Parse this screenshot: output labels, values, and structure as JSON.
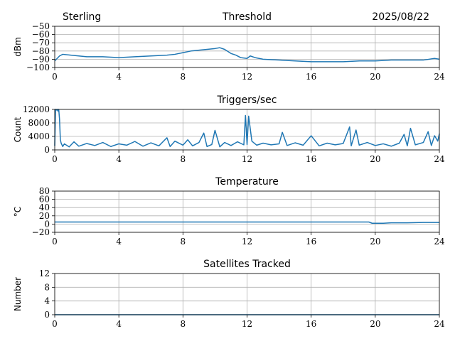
{
  "header": {
    "station": "Sterling",
    "date": "2025/08/22"
  },
  "colors": {
    "series": "#1f77b4",
    "grid": "#b0b0b0"
  },
  "chart_data": [
    {
      "type": "line",
      "title": "Threshold",
      "ylabel": "dBm",
      "xlim": [
        0,
        24
      ],
      "ylim": [
        -100,
        -50
      ],
      "xticks": [
        0,
        4,
        8,
        12,
        16,
        20,
        24
      ],
      "yticks": [
        -100,
        -90,
        -80,
        -70,
        -60,
        -50
      ],
      "ytick_labels": [
        "−100",
        "−90",
        "−80",
        "−70",
        "−60",
        "−50"
      ],
      "grid": true,
      "series": [
        {
          "x": [
            0,
            0.3,
            0.5,
            1,
            2,
            3,
            4,
            5,
            6,
            7,
            7.5,
            8,
            8.5,
            9,
            9.5,
            10,
            10.3,
            10.6,
            11,
            11.3,
            11.6,
            12,
            12.2,
            12.5,
            13,
            14,
            15,
            16,
            17,
            18,
            19,
            20,
            21,
            22,
            23,
            23.7,
            24
          ],
          "y": [
            -92,
            -86,
            -84,
            -85,
            -87,
            -87,
            -88,
            -87,
            -86,
            -85,
            -84,
            -82,
            -80,
            -79,
            -78,
            -77,
            -76,
            -78,
            -83,
            -85,
            -88,
            -89,
            -86,
            -88,
            -90,
            -91,
            -92,
            -93,
            -93,
            -93,
            -92,
            -92,
            -91,
            -91,
            -91,
            -89,
            -90
          ]
        }
      ]
    },
    {
      "type": "line",
      "title": "Triggers/sec",
      "ylabel": "Count",
      "xlim": [
        0,
        24
      ],
      "ylim": [
        0,
        12000
      ],
      "xticks": [
        0,
        4,
        8,
        12,
        16,
        20,
        24
      ],
      "yticks": [
        0,
        4000,
        8000,
        12000
      ],
      "ytick_labels": [
        "0",
        "4000",
        "8000",
        "12000"
      ],
      "grid": true,
      "base_level": 1500,
      "series": [
        {
          "x": [
            0,
            0.05,
            0.1,
            0.15,
            0.2,
            0.25,
            0.3,
            0.35,
            0.4,
            0.5,
            0.6,
            0.9,
            1.2,
            1.5,
            2,
            2.5,
            3,
            3.5,
            4,
            4.5,
            5,
            5.5,
            6,
            6.5,
            7,
            7.2,
            7.5,
            8,
            8.3,
            8.6,
            9,
            9.3,
            9.5,
            9.8,
            10,
            10.3,
            10.6,
            11,
            11.4,
            11.8,
            11.9,
            12,
            12.1,
            12.3,
            12.6,
            13,
            13.5,
            14,
            14.2,
            14.5,
            15,
            15.5,
            16,
            16.5,
            17,
            17.5,
            18,
            18.4,
            18.5,
            18.8,
            19,
            19.5,
            20,
            20.5,
            21,
            21.5,
            21.8,
            22,
            22.2,
            22.5,
            23,
            23.3,
            23.5,
            23.7,
            23.9,
            24
          ],
          "y": [
            1200,
            12000,
            11800,
            12000,
            11500,
            12000,
            9000,
            3000,
            2000,
            1000,
            1800,
            900,
            2400,
            1100,
            1900,
            1300,
            2200,
            1000,
            1800,
            1400,
            2500,
            1100,
            2100,
            1200,
            3600,
            1000,
            2600,
            1400,
            3000,
            1200,
            2200,
            5000,
            1000,
            1600,
            5800,
            900,
            2200,
            1300,
            2400,
            1500,
            10200,
            1600,
            10000,
            2600,
            1400,
            2000,
            1500,
            1800,
            5200,
            1300,
            2100,
            1400,
            4200,
            1200,
            2000,
            1500,
            1900,
            6800,
            1200,
            5900,
            1400,
            2200,
            1300,
            1800,
            1100,
            2000,
            4600,
            1200,
            6400,
            1500,
            2200,
            5400,
            1300,
            4200,
            2600,
            4800
          ]
        }
      ]
    },
    {
      "type": "line",
      "title": "Temperature",
      "ylabel": "°C",
      "xlim": [
        0,
        24
      ],
      "ylim": [
        -20,
        80
      ],
      "xticks": [
        0,
        4,
        8,
        12,
        16,
        20,
        24
      ],
      "yticks": [
        -20,
        0,
        20,
        40,
        60,
        80
      ],
      "ytick_labels": [
        "−20",
        "0",
        "20",
        "40",
        "60",
        "80"
      ],
      "grid": true,
      "series": [
        {
          "x": [
            0,
            4,
            8,
            12,
            16,
            19.6,
            19.8,
            20.5,
            21,
            22,
            23,
            24
          ],
          "y": [
            5,
            5,
            5,
            5,
            5,
            5,
            2,
            2,
            3,
            3,
            4,
            4
          ]
        }
      ]
    },
    {
      "type": "line",
      "title": "Satellites Tracked",
      "ylabel": "Number",
      "xlim": [
        0,
        24
      ],
      "ylim": [
        0,
        12
      ],
      "xticks": [
        0,
        4,
        8,
        12,
        16,
        20,
        24
      ],
      "yticks": [
        0,
        4,
        8,
        12
      ],
      "ytick_labels": [
        "0",
        "4",
        "8",
        "12"
      ],
      "grid": true,
      "series": [
        {
          "x": [
            0,
            24
          ],
          "y": [
            0,
            0
          ]
        }
      ]
    }
  ]
}
